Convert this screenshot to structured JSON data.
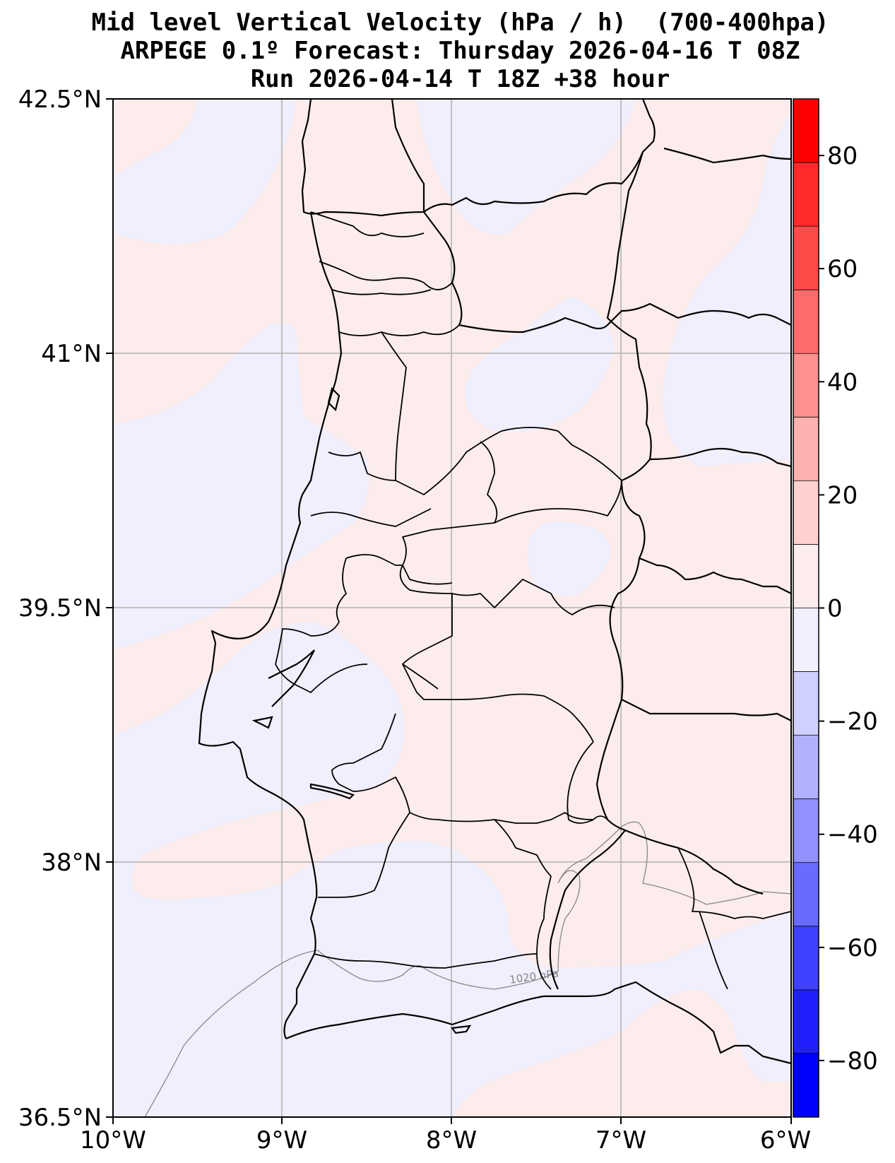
{
  "title": {
    "line1": "Mid level Vertical Velocity (hPa / h)  (700-400hpa)",
    "line2": "ARPEGE 0.1º Forecast: Thursday 2026-04-16 T 08Z",
    "line3": "Run 2026-04-14 T 18Z +38 hour"
  },
  "axes": {
    "lat_labels": [
      "42.5°N",
      "41°N",
      "39.5°N",
      "38°N",
      "36.5°N"
    ],
    "lon_labels": [
      "10°W",
      "9°W",
      "8°W",
      "7°W",
      "6°W"
    ],
    "lat_range": [
      36.5,
      42.5
    ],
    "lon_range": [
      -10,
      -6
    ]
  },
  "isobar_label": "1020 hPa",
  "colorbar": {
    "tick_labels": [
      "80",
      "60",
      "40",
      "20",
      "0",
      "−20",
      "−40",
      "−60",
      "−80"
    ],
    "range": [
      -90,
      90
    ],
    "colors": [
      "#0000ff",
      "#2020ff",
      "#4040ff",
      "#6a6aff",
      "#9090ff",
      "#b1b1ff",
      "#d0d0ff",
      "#efeffd",
      "#fcecec",
      "#ffd0d0",
      "#ffb0b0",
      "#ff9090",
      "#ff6a6a",
      "#ff4a4a",
      "#ff2a2a",
      "#ff0000"
    ]
  },
  "field_colors": {
    "positive": "#fcecec",
    "negative": "#efeffd"
  }
}
